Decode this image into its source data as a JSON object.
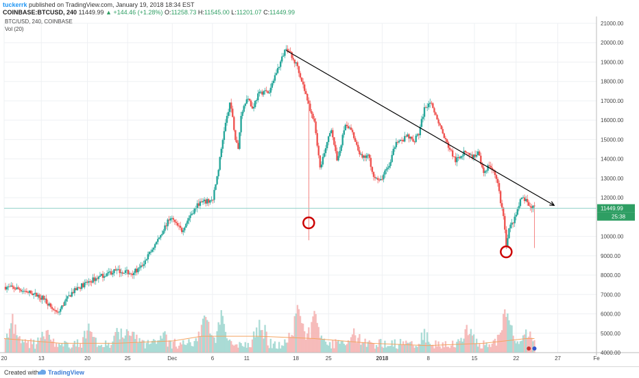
{
  "header": {
    "author": "tuckerrk",
    "published_text": "published on TradingView.com, January 19, 2018 18:34 EST",
    "symbol": "COINBASE:BTCUSD, 240",
    "last": "11449.99",
    "change": "+144.46 (+1.28%)",
    "o_label": "O:",
    "o_value": "11258.73",
    "h_label": "H:",
    "h_value": "11545.00",
    "l_label": "L:",
    "l_value": "11201.07",
    "c_label": "C:",
    "c_value": "11449.99"
  },
  "legend": {
    "series": "BTC/USD, 240, COINBASE",
    "indicator": "Vol (20)"
  },
  "price_axis": {
    "labels": [
      "21000.00",
      "20000.00",
      "19000.00",
      "18000.00",
      "17000.00",
      "16000.00",
      "15000.00",
      "14000.00",
      "13000.00",
      "12000.00",
      "11000.00",
      "10000.00",
      "9000.00",
      "8000.00",
      "7000.00",
      "6000.00",
      "5000.00",
      "4000.00"
    ],
    "last_price_label": "11449.99",
    "countdown_label": "25:38"
  },
  "time_axis": {
    "labels": [
      "20",
      "13",
      "20",
      "25",
      "Dec",
      "6",
      "11",
      "18",
      "25",
      "2018",
      "8",
      "15",
      "22",
      "27",
      "Fe"
    ]
  },
  "footer": {
    "created_with": "Created with",
    "brand": "TradingView"
  },
  "colors": {
    "up": "#26a69a",
    "down": "#ef5350",
    "trendline": "#000000",
    "circle": "#cc0000",
    "ma": "#f4a460"
  },
  "chart_data": {
    "type": "candlestick",
    "title": "BTC/USD, 240, COINBASE",
    "ylim": [
      4000,
      21000
    ],
    "x_ticks": [
      "20",
      "13",
      "20",
      "25",
      "Dec",
      "6",
      "11",
      "18",
      "25",
      "2018",
      "8",
      "15",
      "22",
      "27",
      "Fe"
    ],
    "price_path": [
      [
        0,
        7400
      ],
      [
        5,
        7300
      ],
      [
        10,
        7050
      ],
      [
        14,
        6800
      ],
      [
        17,
        6300
      ],
      [
        19,
        6000
      ],
      [
        21,
        6500
      ],
      [
        24,
        7100
      ],
      [
        28,
        7500
      ],
      [
        32,
        7800
      ],
      [
        36,
        8050
      ],
      [
        39,
        8200
      ],
      [
        42,
        8200
      ],
      [
        45,
        8100
      ],
      [
        48,
        8300
      ],
      [
        51,
        9000
      ],
      [
        54,
        9700
      ],
      [
        57,
        10500
      ],
      [
        59,
        11000
      ],
      [
        61,
        10600
      ],
      [
        63,
        10300
      ],
      [
        66,
        11100
      ],
      [
        69,
        11700
      ],
      [
        72,
        11800
      ],
      [
        74,
        11900
      ],
      [
        76,
        13500
      ],
      [
        78,
        15500
      ],
      [
        80,
        16800
      ],
      [
        81,
        16200
      ],
      [
        82,
        15000
      ],
      [
        83,
        14500
      ],
      [
        84,
        16300
      ],
      [
        86,
        17200
      ],
      [
        88,
        16600
      ],
      [
        90,
        17300
      ],
      [
        92,
        17500
      ],
      [
        94,
        17400
      ],
      [
        96,
        18300
      ],
      [
        98,
        19000
      ],
      [
        100,
        19800
      ],
      [
        101,
        19600
      ],
      [
        102,
        19200
      ],
      [
        104,
        18800
      ],
      [
        106,
        17800
      ],
      [
        108,
        16800
      ],
      [
        110,
        16000
      ],
      [
        111,
        14800
      ],
      [
        112,
        13500
      ],
      [
        114,
        14500
      ],
      [
        116,
        15600
      ],
      [
        117,
        14800
      ],
      [
        118,
        13800
      ],
      [
        119,
        14500
      ],
      [
        121,
        15800
      ],
      [
        123,
        15500
      ],
      [
        125,
        14600
      ],
      [
        127,
        14000
      ],
      [
        129,
        14200
      ],
      [
        131,
        13200
      ],
      [
        133,
        12800
      ],
      [
        135,
        13300
      ],
      [
        137,
        13800
      ],
      [
        139,
        15000
      ],
      [
        141,
        14900
      ],
      [
        143,
        15200
      ],
      [
        145,
        14900
      ],
      [
        147,
        15300
      ],
      [
        149,
        16600
      ],
      [
        151,
        17000
      ],
      [
        152,
        16500
      ],
      [
        154,
        15900
      ],
      [
        156,
        15100
      ],
      [
        158,
        14500
      ],
      [
        160,
        13900
      ],
      [
        162,
        14200
      ],
      [
        164,
        14400
      ],
      [
        166,
        14100
      ],
      [
        168,
        14300
      ],
      [
        170,
        13300
      ],
      [
        172,
        13700
      ],
      [
        174,
        13200
      ],
      [
        175,
        12800
      ],
      [
        176,
        11800
      ],
      [
        177,
        11100
      ],
      [
        178,
        9600
      ],
      [
        179,
        10400
      ],
      [
        181,
        10900
      ],
      [
        183,
        11800
      ],
      [
        184,
        12000
      ],
      [
        186,
        11600
      ],
      [
        188,
        11450
      ]
    ],
    "wick_extremes": [
      [
        108,
        9800
      ],
      [
        188,
        9400
      ]
    ],
    "volume_ylim": [
      0,
      18
    ],
    "volume_peaks": [
      [
        3,
        6
      ],
      [
        14,
        4
      ],
      [
        30,
        4
      ],
      [
        41,
        5
      ],
      [
        45,
        6
      ],
      [
        56,
        4
      ],
      [
        71,
        10
      ],
      [
        77,
        7
      ],
      [
        91,
        7
      ],
      [
        104,
        9
      ],
      [
        110,
        8
      ],
      [
        124,
        4
      ],
      [
        149,
        3
      ],
      [
        164,
        5
      ],
      [
        178,
        9
      ],
      [
        185,
        4
      ]
    ],
    "ma20": [
      [
        0,
        3
      ],
      [
        20,
        2
      ],
      [
        40,
        2
      ],
      [
        60,
        2.5
      ],
      [
        70,
        3.5
      ],
      [
        90,
        3.5
      ],
      [
        110,
        3
      ],
      [
        130,
        2
      ],
      [
        150,
        1.5
      ],
      [
        170,
        2
      ],
      [
        185,
        3
      ],
      [
        188,
        3
      ]
    ],
    "trendline": [
      [
        100,
        19600
      ],
      [
        195,
        11600
      ]
    ],
    "markers": [
      [
        108,
        10700
      ],
      [
        178,
        9200
      ]
    ]
  }
}
